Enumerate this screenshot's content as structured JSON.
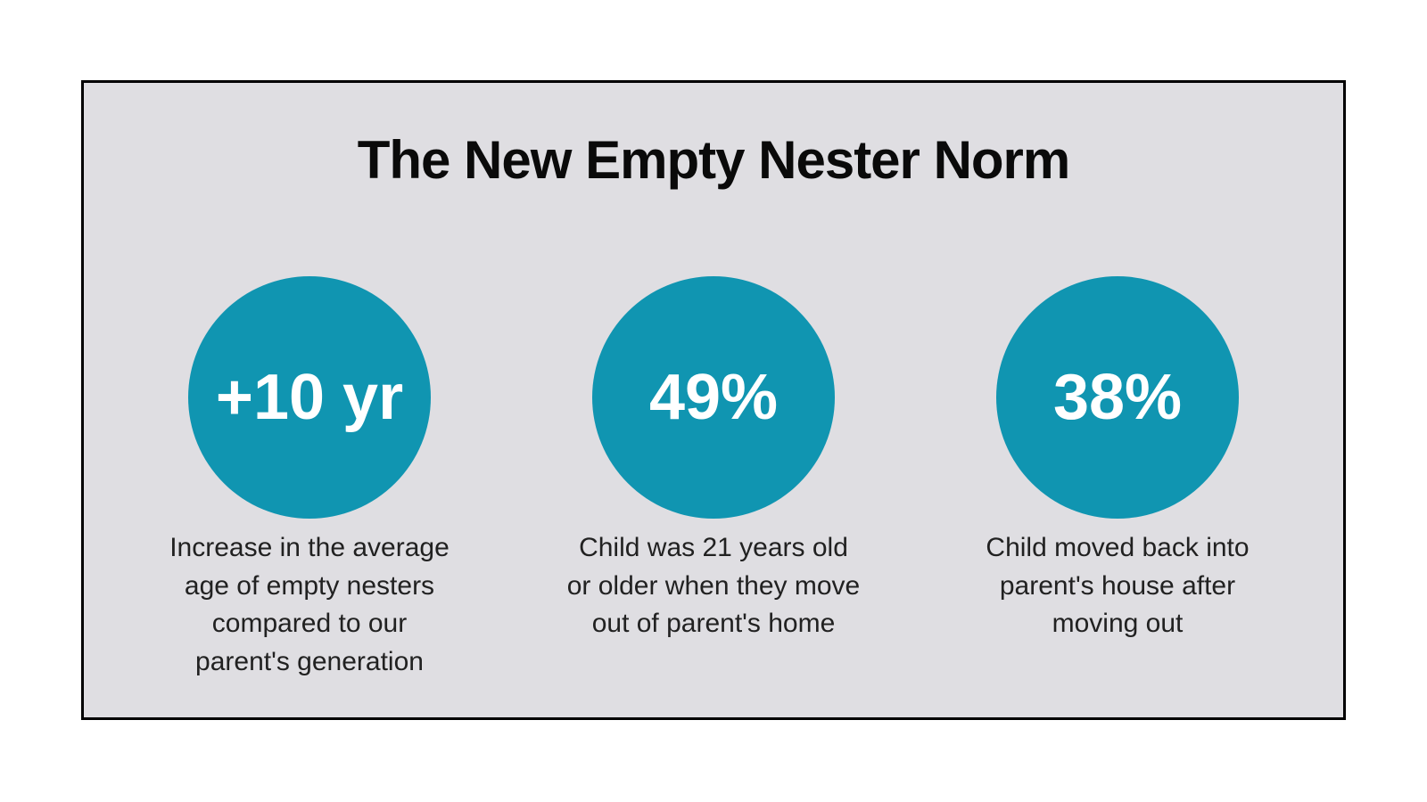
{
  "page": {
    "background_color": "#ffffff"
  },
  "card": {
    "title": "The New Empty Nester Norm",
    "background_color": "#dfdee2",
    "border_color": "#000000",
    "accent_color": "#1095b1",
    "stat_text_color": "#ffffff",
    "caption_text_color": "#212121",
    "stats": [
      {
        "value": "+10 yr",
        "caption": "Increase in the average\nage of empty nesters\ncompared to our\nparent's generation"
      },
      {
        "value": "49%",
        "caption": "Child was 21 years old\nor older when they move\nout of parent's home"
      },
      {
        "value": "38%",
        "caption": "Child moved back into\nparent's house after\nmoving out"
      }
    ]
  },
  "chart_data": {
    "type": "table",
    "title": "The New Empty Nester Norm",
    "categories": [
      "Increase in the average age of empty nesters compared to our parent's generation",
      "Child was 21 years old or older when they move out of parent's home",
      "Child moved back into parent's house after moving out"
    ],
    "values": [
      "+10 yr",
      "49%",
      "38%"
    ],
    "values_numeric": [
      10,
      49,
      38
    ],
    "units": [
      "years",
      "percent",
      "percent"
    ],
    "legend_position": "none",
    "grid": false
  }
}
